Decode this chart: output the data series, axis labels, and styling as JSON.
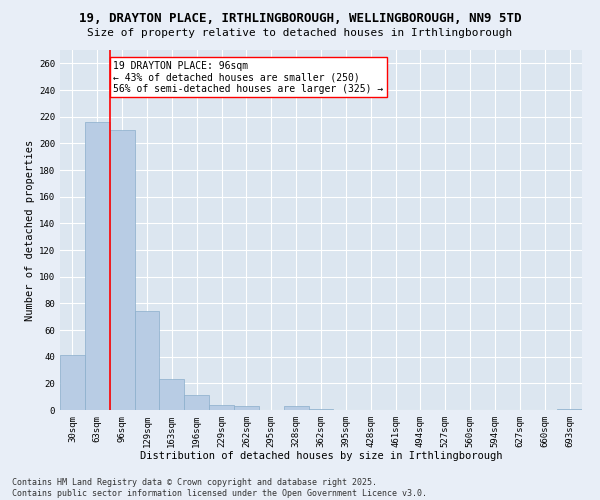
{
  "title_line1": "19, DRAYTON PLACE, IRTHLINGBOROUGH, WELLINGBOROUGH, NN9 5TD",
  "title_line2": "Size of property relative to detached houses in Irthlingborough",
  "xlabel": "Distribution of detached houses by size in Irthlingborough",
  "ylabel": "Number of detached properties",
  "categories": [
    "30sqm",
    "63sqm",
    "96sqm",
    "129sqm",
    "163sqm",
    "196sqm",
    "229sqm",
    "262sqm",
    "295sqm",
    "328sqm",
    "362sqm",
    "395sqm",
    "428sqm",
    "461sqm",
    "494sqm",
    "527sqm",
    "560sqm",
    "594sqm",
    "627sqm",
    "660sqm",
    "693sqm"
  ],
  "values": [
    41,
    216,
    210,
    74,
    23,
    11,
    4,
    3,
    0,
    3,
    1,
    0,
    0,
    0,
    0,
    0,
    0,
    0,
    0,
    0,
    1
  ],
  "bar_color": "#b8cce4",
  "bar_edge_color": "#8aaecb",
  "red_line_x": 2,
  "red_line_label": "19 DRAYTON PLACE: 96sqm",
  "annotation_line2": "← 43% of detached houses are smaller (250)",
  "annotation_line3": "56% of semi-detached houses are larger (325) →",
  "ylim": [
    0,
    270
  ],
  "yticks": [
    0,
    20,
    40,
    60,
    80,
    100,
    120,
    140,
    160,
    180,
    200,
    220,
    240,
    260
  ],
  "background_color": "#e8eef7",
  "plot_bg_color": "#dce6f0",
  "grid_color": "#ffffff",
  "footer_line1": "Contains HM Land Registry data © Crown copyright and database right 2025.",
  "footer_line2": "Contains public sector information licensed under the Open Government Licence v3.0.",
  "title_fontsize": 9,
  "subtitle_fontsize": 8,
  "axis_label_fontsize": 7.5,
  "tick_fontsize": 6.5,
  "annotation_fontsize": 7,
  "footer_fontsize": 6
}
